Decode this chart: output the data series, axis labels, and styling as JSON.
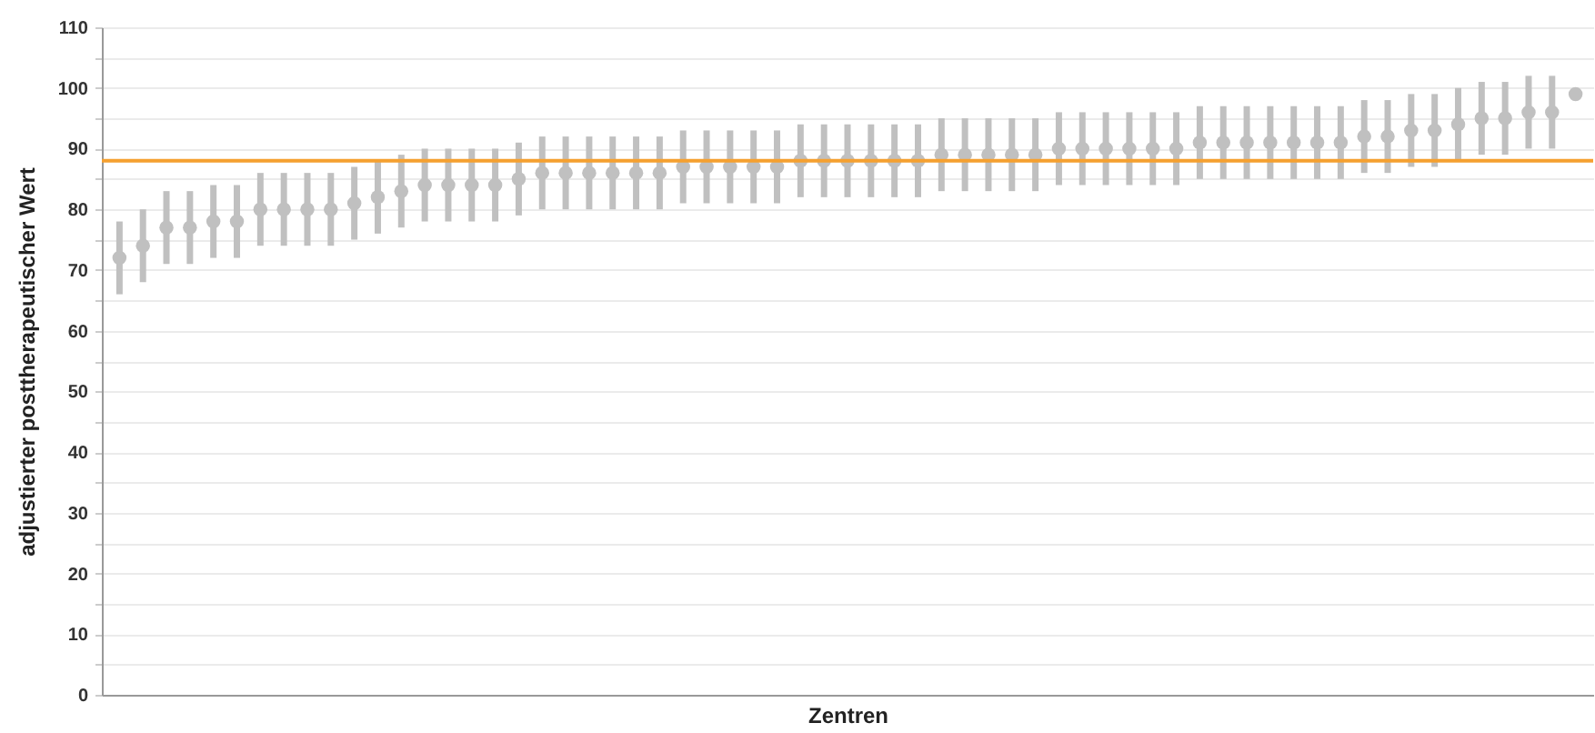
{
  "chart_data": {
    "type": "scatter",
    "xlabel": "Zentren",
    "ylabel": "adjustierter posttherapeutischer Wert",
    "categories": [
      null,
      null,
      null,
      null,
      null,
      null,
      null,
      null,
      null,
      null,
      null,
      null,
      null,
      null,
      null,
      null,
      null,
      null,
      null,
      null,
      null,
      null,
      null,
      null,
      null,
      null,
      null,
      null,
      null,
      null,
      null,
      null,
      null,
      null,
      null,
      null,
      null,
      null,
      null,
      null,
      null,
      null,
      null,
      null,
      null,
      null,
      null,
      null,
      null,
      null,
      null,
      null,
      null,
      null,
      null,
      null,
      null,
      null,
      null,
      null,
      null,
      null,
      null
    ],
    "series": [
      {
        "color": "#c0c0c0",
        "values": [
          72,
          74,
          77,
          77,
          78,
          78,
          80,
          80,
          80,
          80,
          81,
          82,
          83,
          84,
          84,
          84,
          84,
          85,
          86,
          86,
          86,
          86,
          86,
          86,
          87,
          87,
          87,
          87,
          87,
          88,
          88,
          88,
          88,
          88,
          88,
          89,
          89,
          89,
          89,
          89,
          90,
          90,
          90,
          90,
          90,
          90,
          91,
          91,
          91,
          91,
          91,
          91,
          91,
          92,
          92,
          93,
          93,
          94,
          95,
          95,
          96,
          96,
          99
        ],
        "errors": [
          6,
          6,
          6,
          6,
          6,
          6,
          6,
          6,
          6,
          6,
          6,
          6,
          6,
          6,
          6,
          6,
          6,
          6,
          6,
          6,
          6,
          6,
          6,
          6,
          6,
          6,
          6,
          6,
          6,
          6,
          6,
          6,
          6,
          6,
          6,
          6,
          6,
          6,
          6,
          6,
          6,
          6,
          6,
          6,
          6,
          6,
          6,
          6,
          6,
          6,
          6,
          6,
          6,
          6,
          6,
          6,
          6,
          6,
          6,
          6,
          6,
          6,
          null
        ]
      }
    ],
    "ylim": [
      0,
      110
    ],
    "yticks": [
      0,
      {
        "value": 5,
        "label": null
      },
      10,
      {
        "value": 15,
        "label": null
      },
      20,
      {
        "value": 25,
        "label": null
      },
      30,
      {
        "value": 35,
        "label": null
      },
      40,
      {
        "value": 45,
        "label": null
      },
      50,
      {
        "value": 55,
        "label": null
      },
      60,
      {
        "value": 65,
        "label": null
      },
      70,
      {
        "value": 75,
        "label": null
      },
      80,
      {
        "value": 85,
        "label": null
      },
      90,
      {
        "value": 95,
        "label": null
      },
      100,
      {
        "value": 105,
        "label": null
      },
      110
    ],
    "ref_lines": [
      {
        "axis": "y",
        "value": 88,
        "color": "#f5a030"
      }
    ],
    "grid": "y",
    "marker": "circle",
    "tick_labels": "y"
  }
}
